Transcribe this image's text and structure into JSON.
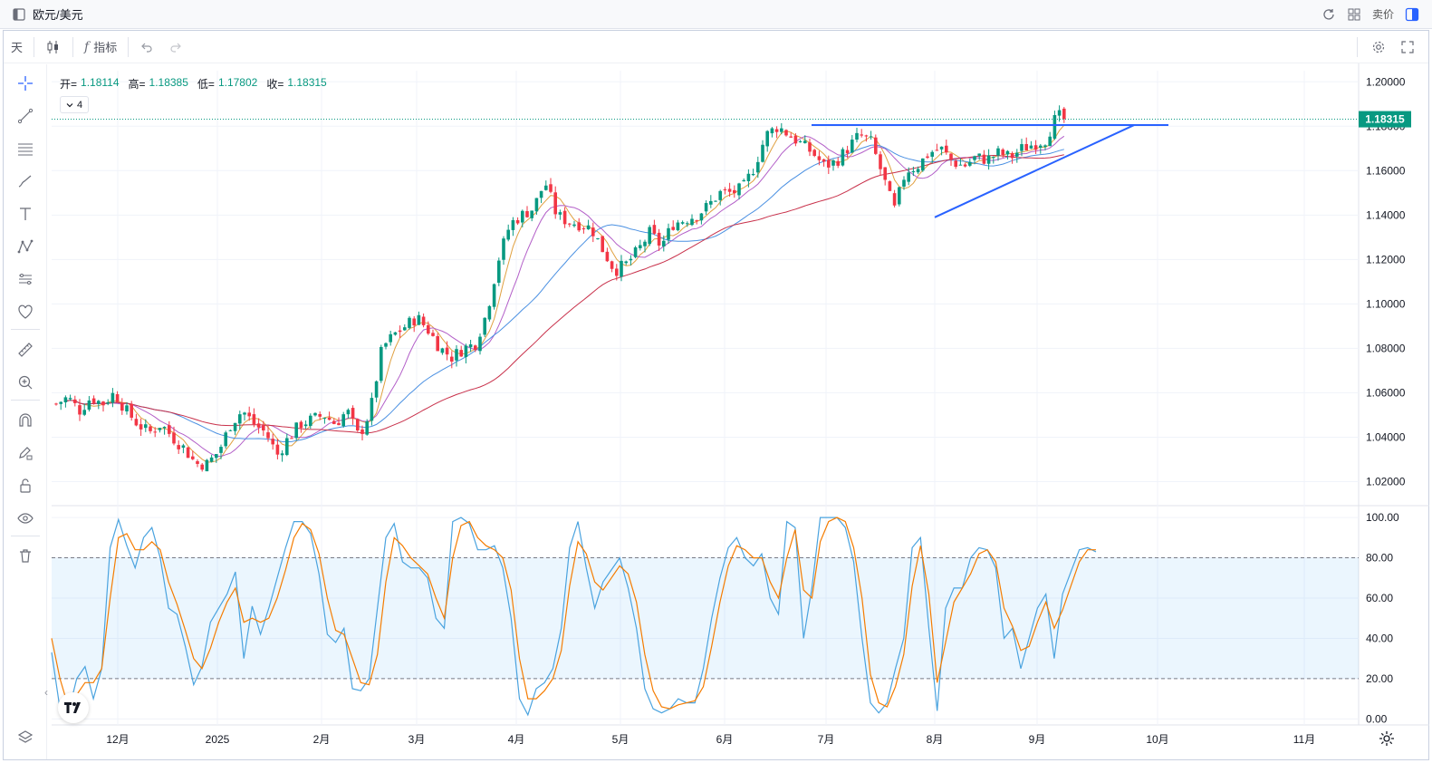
{
  "window": {
    "title": "欧元/美元",
    "trade_label": "卖价"
  },
  "toolbar": {
    "interval": "天",
    "indicators_label": "指标"
  },
  "legend": {
    "open_label": "开=",
    "open": "1.18114",
    "high_label": "高=",
    "high": "1.18385",
    "low_label": "低=",
    "low": "1.17802",
    "close_label": "收=",
    "close": "1.18315",
    "collapse_count": "4"
  },
  "colors": {
    "up": "#089981",
    "down": "#f23645",
    "blue_line": "#2962ff",
    "stoch_k": "#4aa3df",
    "stoch_d": "#f57c00",
    "ma_fast": "#e0a040",
    "ma_mid": "#b35fc8",
    "ma_slow": "#c8304a",
    "ma_base": "#4a90e2"
  },
  "chart_data": [
    {
      "type": "candlestick",
      "symbol": "EUR/USD",
      "interval": "1D",
      "ylim": [
        1.01,
        1.205
      ],
      "y_ticks": [
        "1.20000",
        "1.18000",
        "1.16000",
        "1.14000",
        "1.12000",
        "1.10000",
        "1.08000",
        "1.06000",
        "1.04000",
        "1.02000"
      ],
      "last_price": "1.18315",
      "x_ticks": [
        "12月",
        "2025",
        "2月",
        "3月",
        "4月",
        "5月",
        "6月",
        "7月",
        "8月",
        "9月",
        "10月",
        "11月"
      ],
      "close_path": [
        [
          0,
          1.055
        ],
        [
          5,
          1.058
        ],
        [
          10,
          1.052
        ],
        [
          15,
          1.058
        ],
        [
          20,
          1.055
        ],
        [
          25,
          1.06
        ],
        [
          30,
          1.052
        ],
        [
          35,
          1.046
        ],
        [
          40,
          1.042
        ],
        [
          45,
          1.046
        ],
        [
          50,
          1.04
        ],
        [
          55,
          1.035
        ],
        [
          60,
          1.028
        ],
        [
          65,
          1.028
        ],
        [
          70,
          1.034
        ],
        [
          75,
          1.046
        ],
        [
          80,
          1.052
        ],
        [
          85,
          1.046
        ],
        [
          90,
          1.042
        ],
        [
          95,
          1.032
        ],
        [
          100,
          1.04
        ],
        [
          105,
          1.046
        ],
        [
          110,
          1.048
        ],
        [
          115,
          1.05
        ],
        [
          120,
          1.046
        ],
        [
          125,
          1.052
        ],
        [
          130,
          1.04
        ],
        [
          135,
          1.052
        ],
        [
          140,
          1.08
        ],
        [
          145,
          1.086
        ],
        [
          150,
          1.09
        ],
        [
          155,
          1.094
        ],
        [
          160,
          1.088
        ],
        [
          165,
          1.08
        ],
        [
          170,
          1.076
        ],
        [
          175,
          1.08
        ],
        [
          180,
          1.082
        ],
        [
          185,
          1.096
        ],
        [
          190,
          1.12
        ],
        [
          195,
          1.136
        ],
        [
          200,
          1.14
        ],
        [
          205,
          1.143
        ],
        [
          210,
          1.155
        ],
        [
          215,
          1.14
        ],
        [
          220,
          1.137
        ],
        [
          225,
          1.136
        ],
        [
          230,
          1.134
        ],
        [
          235,
          1.124
        ],
        [
          240,
          1.115
        ],
        [
          245,
          1.118
        ],
        [
          250,
          1.124
        ],
        [
          255,
          1.132
        ],
        [
          260,
          1.126
        ],
        [
          265,
          1.136
        ],
        [
          270,
          1.138
        ],
        [
          275,
          1.14
        ],
        [
          280,
          1.144
        ],
        [
          285,
          1.15
        ],
        [
          290,
          1.15
        ],
        [
          295,
          1.152
        ],
        [
          300,
          1.162
        ],
        [
          305,
          1.176
        ],
        [
          310,
          1.18
        ],
        [
          315,
          1.176
        ],
        [
          320,
          1.172
        ],
        [
          325,
          1.168
        ],
        [
          330,
          1.162
        ],
        [
          335,
          1.164
        ],
        [
          340,
          1.17
        ],
        [
          345,
          1.176
        ],
        [
          350,
          1.173
        ],
        [
          355,
          1.158
        ],
        [
          360,
          1.142
        ],
        [
          365,
          1.16
        ],
        [
          370,
          1.162
        ],
        [
          375,
          1.168
        ],
        [
          380,
          1.17
        ],
        [
          385,
          1.164
        ],
        [
          390,
          1.162
        ],
        [
          395,
          1.166
        ],
        [
          400,
          1.165
        ],
        [
          405,
          1.168
        ],
        [
          410,
          1.166
        ],
        [
          415,
          1.17
        ],
        [
          420,
          1.172
        ],
        [
          425,
          1.174
        ],
        [
          430,
          1.185
        ],
        [
          433,
          1.183
        ]
      ],
      "annotations": {
        "resistance": 1.1805,
        "triangle_apex": 1.1805,
        "support_start": 1.139
      }
    },
    {
      "type": "line",
      "title": "Stochastic",
      "ylim": [
        -3,
        105
      ],
      "y_ticks": [
        "100.00",
        "80.00",
        "60.00",
        "40.00",
        "20.00",
        "0.00"
      ],
      "band": [
        20,
        80
      ],
      "series": [
        {
          "key": "k",
          "values": [
            33,
            5,
            3,
            20,
            26,
            10,
            25,
            85,
            99,
            86,
            75,
            90,
            95,
            80,
            55,
            52,
            36,
            17,
            26,
            48,
            55,
            62,
            73,
            30,
            56,
            42,
            55,
            70,
            85,
            98,
            98,
            92,
            72,
            42,
            38,
            45,
            15,
            14,
            20,
            55,
            90,
            97,
            78,
            75,
            75,
            70,
            50,
            45,
            98,
            100,
            97,
            84,
            84,
            86,
            75,
            50,
            10,
            2,
            15,
            18,
            25,
            45,
            85,
            98,
            75,
            55,
            68,
            74,
            80,
            65,
            45,
            15,
            5,
            3,
            5,
            10,
            8,
            8,
            25,
            50,
            70,
            85,
            90,
            80,
            76,
            82,
            60,
            52,
            98,
            95,
            40,
            65,
            100,
            100,
            100,
            95,
            78,
            40,
            8,
            3,
            8,
            25,
            40,
            85,
            90,
            45,
            4,
            55,
            65,
            65,
            80,
            85,
            84,
            75,
            40,
            45,
            25,
            40,
            55,
            62,
            30,
            62,
            73,
            84,
            85,
            83
          ]
        },
        {
          "key": "d",
          "values": [
            40,
            20,
            6,
            12,
            18,
            18,
            25,
            60,
            90,
            92,
            84,
            84,
            88,
            84,
            68,
            57,
            44,
            30,
            25,
            35,
            48,
            58,
            65,
            48,
            50,
            48,
            50,
            60,
            74,
            90,
            97,
            94,
            82,
            60,
            44,
            42,
            30,
            18,
            17,
            32,
            68,
            90,
            86,
            80,
            76,
            72,
            60,
            50,
            80,
            96,
            98,
            90,
            86,
            84,
            80,
            64,
            30,
            10,
            10,
            14,
            20,
            34,
            66,
            88,
            82,
            68,
            64,
            70,
            76,
            72,
            58,
            32,
            14,
            6,
            5,
            7,
            8,
            9,
            16,
            36,
            58,
            76,
            86,
            84,
            80,
            80,
            68,
            60,
            80,
            94,
            64,
            60,
            88,
            98,
            100,
            98,
            85,
            60,
            22,
            8,
            6,
            16,
            32,
            66,
            86,
            62,
            18,
            38,
            58,
            65,
            72,
            82,
            84,
            78,
            55,
            46,
            34,
            36,
            48,
            58,
            45,
            54,
            66,
            78,
            84,
            84
          ]
        }
      ]
    }
  ]
}
